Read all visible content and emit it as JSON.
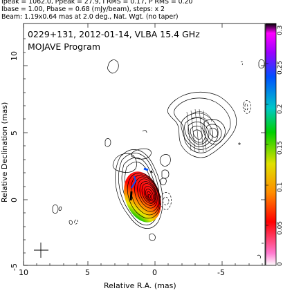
{
  "header": {
    "line1": "Ipeak = 1062.0, Ppeak = 27.9, I RMS = 0.17, P RMS = 0.20",
    "line2": "Ibase = 1.00, Pbase = 0.68 (mJy/beam), steps: x 2",
    "line3": "Beam: 1.19x0.64 mas at 2.0 deg., Nat. Wgt. (no taper)"
  },
  "plot": {
    "title": "0229+131, 2012-01-14, VLBA 15.4 GHz",
    "program": "MOJAVE Program",
    "xlabel": "Relative R.A. (mas)",
    "ylabel": "Relative Declination (mas)",
    "x_ticks": [
      "10",
      "5",
      "0",
      "-5"
    ],
    "y_ticks": [
      "10",
      "5",
      "0",
      "-5"
    ]
  },
  "colorbar": {
    "ticks": [
      "0.3",
      "0.25",
      "0.2",
      "0.15",
      "0.1",
      "0.05",
      "0"
    ]
  }
}
